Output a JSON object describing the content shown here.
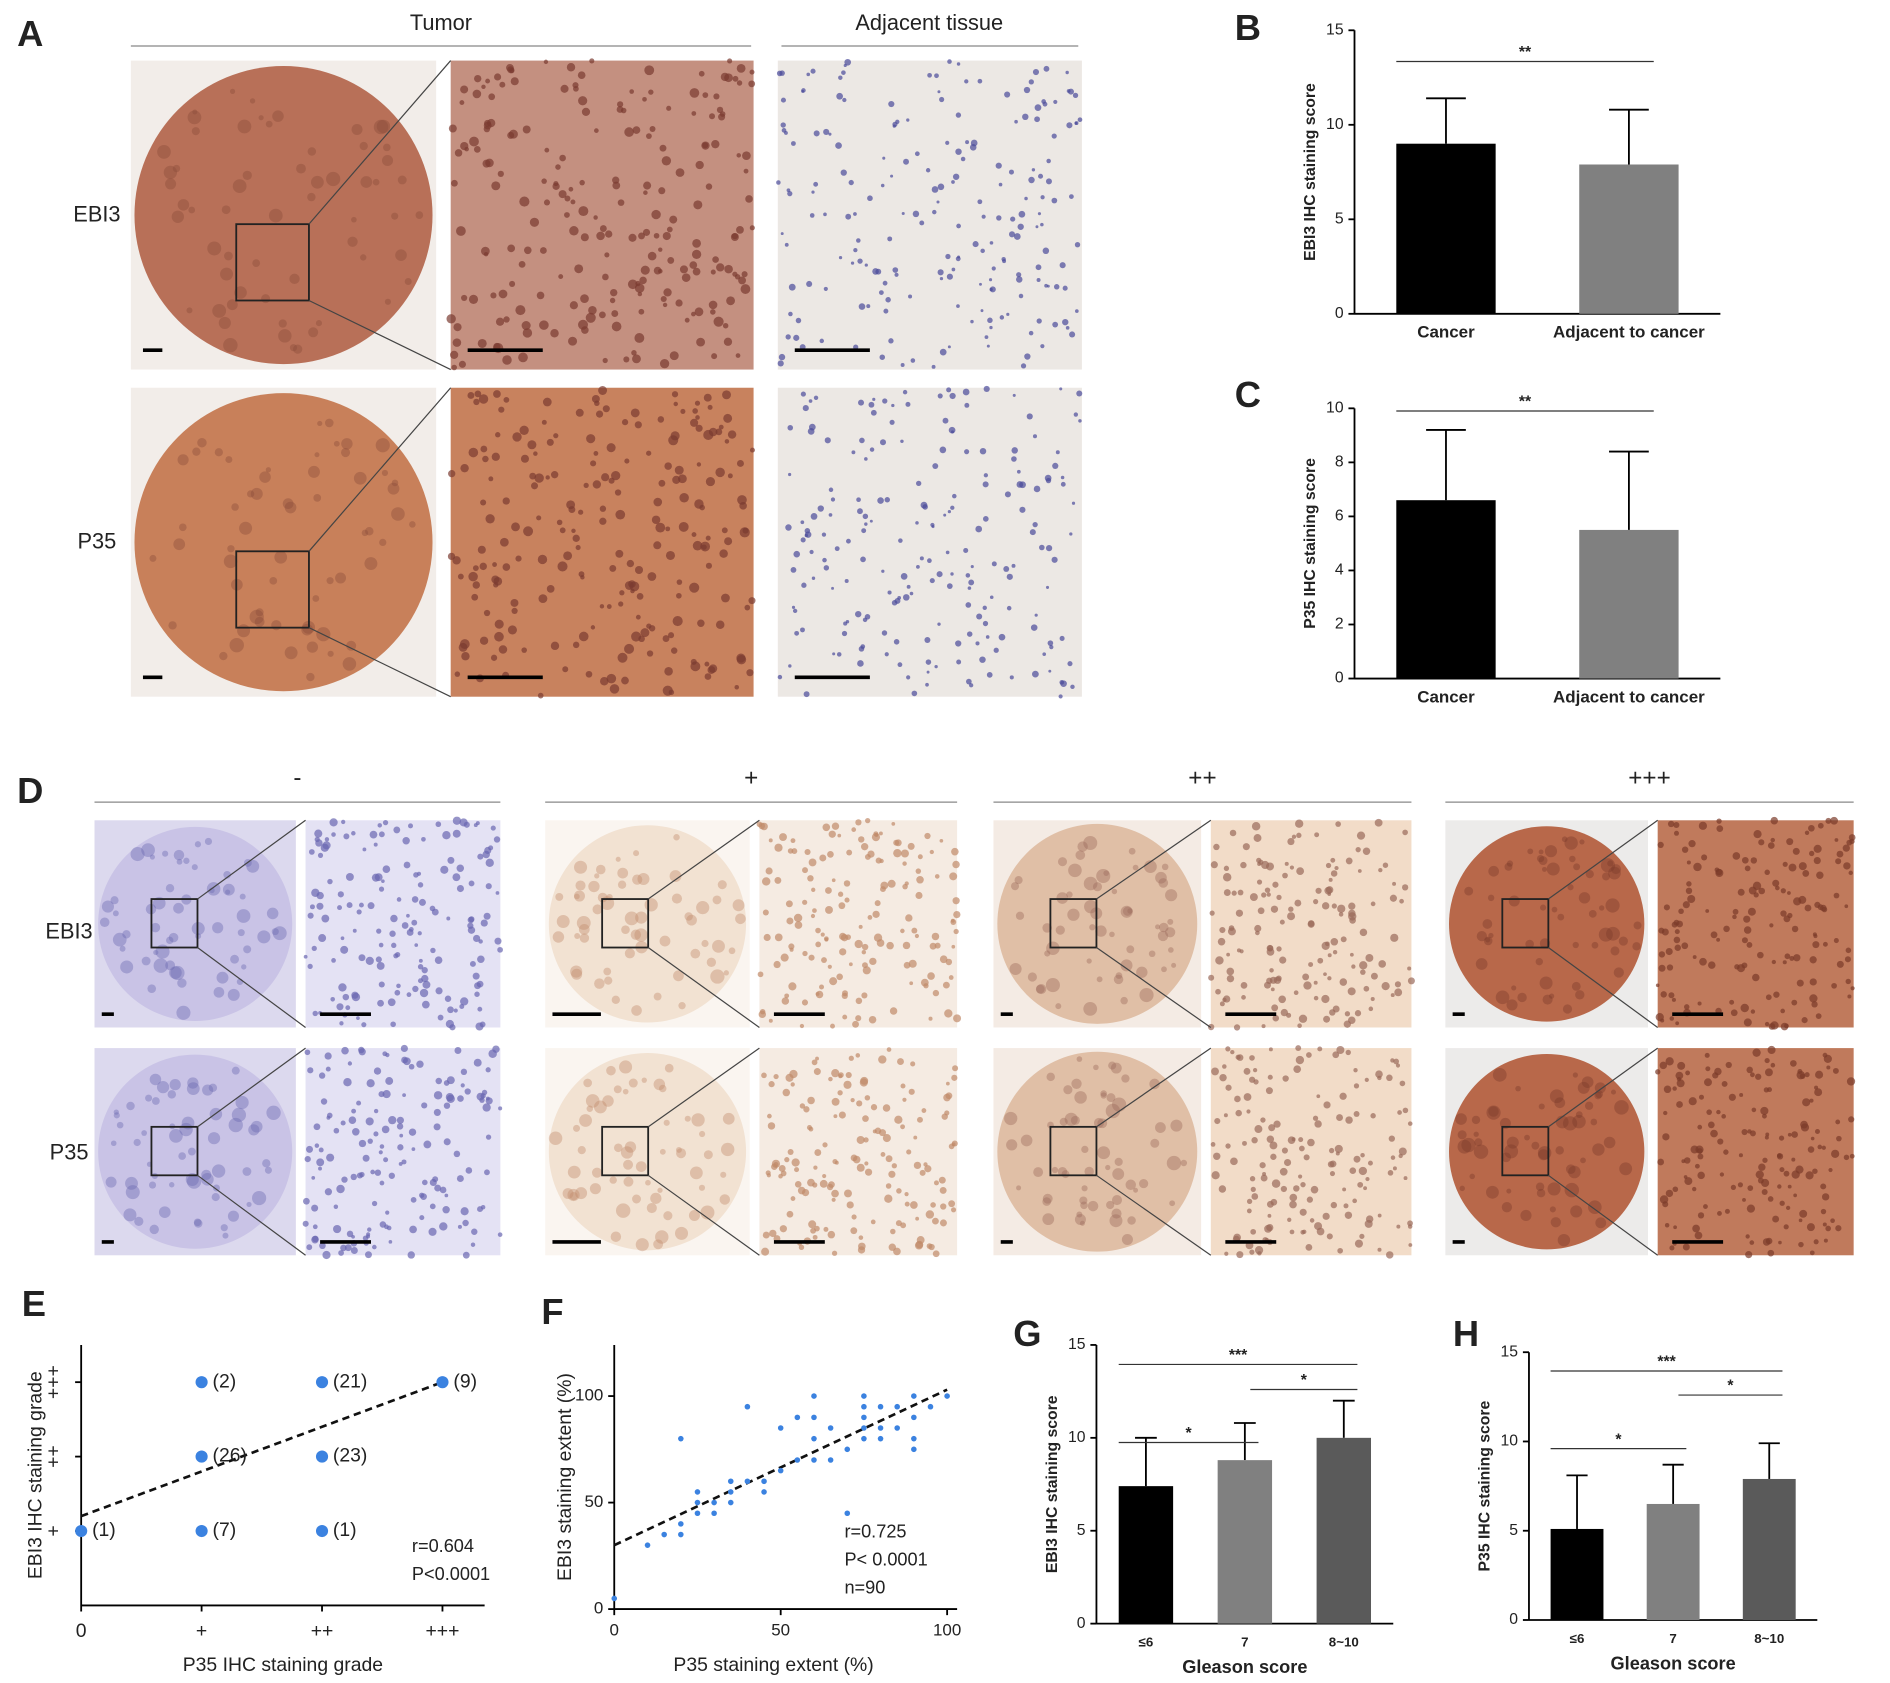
{
  "panel_labels": [
    "A",
    "B",
    "C",
    "D",
    "E",
    "F",
    "G",
    "H"
  ],
  "figure": {
    "tumor_header": "Tumor",
    "adjacent_header": "Adjacent tissue",
    "row_labels": [
      "EBI3",
      "P35"
    ],
    "grade_headers": [
      "-",
      "+",
      "++",
      "+++"
    ]
  },
  "chart_data": [
    {
      "type": "bar",
      "y_label": "EBI3 IHC staining score",
      "categories": [
        "Cancer",
        "Adjacent to cancer"
      ],
      "values": [
        9,
        7.9
      ],
      "errors": [
        2.4,
        2.9
      ],
      "colors": [
        "#000000",
        "#808080"
      ],
      "ylim": [
        0,
        15
      ],
      "yticks": [
        0,
        5,
        10,
        15
      ],
      "comparisons": [
        {
          "between": [
            "Cancer",
            "Adjacent to cancer"
          ],
          "label": "**"
        }
      ]
    },
    {
      "type": "bar",
      "y_label": "P35 IHC staining score",
      "categories": [
        "Cancer",
        "Adjacent to cancer"
      ],
      "values": [
        6.6,
        5.5
      ],
      "errors": [
        2.6,
        2.9
      ],
      "colors": [
        "#000000",
        "#808080"
      ],
      "ylim": [
        0,
        10
      ],
      "yticks": [
        0,
        2,
        4,
        6,
        8,
        10
      ],
      "comparisons": [
        {
          "between": [
            "Cancer",
            "Adjacent to cancer"
          ],
          "label": "**"
        }
      ]
    },
    {
      "type": "scatter",
      "x_label": "P35 IHC staining grade",
      "y_label": "EBI3 IHC staining grade",
      "xlim": [
        0,
        3.35
      ],
      "ylim": [
        0,
        3.5
      ],
      "xticks": [
        0,
        {
          "value": 1,
          "label": "+"
        },
        {
          "value": 2,
          "label": "++"
        },
        {
          "value": 3,
          "label": "+++"
        }
      ],
      "yticks": [
        {
          "value": 1,
          "label": "+"
        },
        {
          "value": 2,
          "label": "++"
        },
        {
          "value": 3,
          "label": "+++"
        }
      ],
      "series": [
        {
          "color": "#3b82e0",
          "x": [
            0,
            1,
            2,
            1,
            2,
            1,
            2,
            3
          ],
          "y": [
            1,
            1,
            1,
            2,
            2,
            3,
            3,
            3
          ],
          "values": [
            1,
            7,
            1,
            26,
            23,
            2,
            21,
            9
          ],
          "value_labels": [
            "(1)",
            "(7)",
            "(1)",
            "(26)",
            "(23)",
            "(2)",
            "(21)",
            "(9)"
          ]
        }
      ],
      "trendline": {
        "x": [
          0,
          3
        ],
        "y": [
          1.2,
          3
        ]
      },
      "annotations": [
        "r=0.604",
        "P<0.0001"
      ]
    },
    {
      "type": "scatter",
      "x_label": "P35 staining extent (%)",
      "y_label": "EBI3 staining extent (%)",
      "xlim": [
        0,
        103
      ],
      "ylim": [
        0,
        124
      ],
      "xticks": [
        0,
        50,
        100
      ],
      "yticks": [
        0,
        50,
        100
      ],
      "series": [
        {
          "color": "#3b82e0",
          "x": [
            0,
            10,
            15,
            20,
            20,
            20,
            25,
            25,
            25,
            30,
            30,
            35,
            35,
            35,
            40,
            40,
            45,
            45,
            50,
            50,
            55,
            55,
            60,
            60,
            60,
            60,
            65,
            65,
            70,
            70,
            75,
            75,
            75,
            75,
            75,
            80,
            80,
            80,
            85,
            85,
            90,
            90,
            90,
            90,
            95,
            100
          ],
          "y": [
            5,
            30,
            35,
            35,
            80,
            40,
            45,
            50,
            55,
            45,
            50,
            50,
            55,
            60,
            60,
            95,
            55,
            60,
            65,
            85,
            70,
            90,
            70,
            80,
            90,
            100,
            70,
            85,
            75,
            45,
            80,
            90,
            100,
            85,
            95,
            85,
            95,
            80,
            85,
            95,
            80,
            75,
            100,
            90,
            95,
            100
          ]
        }
      ],
      "trendline": {
        "x": [
          0,
          100
        ],
        "y": [
          30,
          103
        ]
      },
      "annotations": [
        "r=0.725",
        "P< 0.0001",
        "n=90"
      ]
    },
    {
      "type": "bar",
      "y_label": "EBI3 IHC staining score",
      "x_label": "Gleason score",
      "categories": [
        "≤6",
        "7",
        "8~10"
      ],
      "values": [
        7.4,
        8.8,
        10
      ],
      "errors": [
        2.6,
        2.0,
        2.0
      ],
      "colors": [
        "#000000",
        "#808080",
        "#5a5a5a"
      ],
      "ylim": [
        0,
        15
      ],
      "yticks": [
        0,
        5,
        10,
        15
      ],
      "comparisons": [
        {
          "between": [
            "≤6",
            "8~10"
          ],
          "label": "***"
        },
        {
          "between": [
            "≤6",
            "7"
          ],
          "label": "*"
        },
        {
          "between": [
            "7",
            "8~10"
          ],
          "label": "*"
        }
      ]
    },
    {
      "type": "bar",
      "y_label": "P35 IHC staining score",
      "x_label": "Gleason score",
      "categories": [
        "≤6",
        "7",
        "8~10"
      ],
      "values": [
        5.1,
        6.5,
        7.9
      ],
      "errors": [
        3.0,
        2.2,
        2.0
      ],
      "colors": [
        "#000000",
        "#808080",
        "#5a5a5a"
      ],
      "ylim": [
        0,
        15
      ],
      "yticks": [
        0,
        5,
        10,
        15
      ],
      "comparisons": [
        {
          "between": [
            "≤6",
            "8~10"
          ],
          "label": "***"
        },
        {
          "between": [
            "≤6",
            "7"
          ],
          "label": "*"
        },
        {
          "between": [
            "7",
            "8~10"
          ],
          "label": "*"
        }
      ]
    }
  ]
}
